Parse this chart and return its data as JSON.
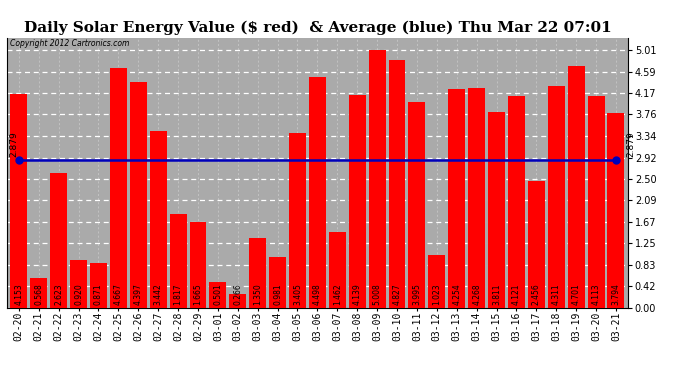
{
  "title": "Daily Solar Energy Value ($ red)  & Average (blue) Thu Mar 22 07:01",
  "copyright": "Copyright 2012 Cartronics.com",
  "categories": [
    "02-20",
    "02-21",
    "02-22",
    "02-23",
    "02-24",
    "02-25",
    "02-26",
    "02-27",
    "02-28",
    "02-29",
    "03-01",
    "03-02",
    "03-03",
    "03-04",
    "03-05",
    "03-06",
    "03-07",
    "03-08",
    "03-09",
    "03-10",
    "03-11",
    "03-12",
    "03-13",
    "03-14",
    "03-15",
    "03-16",
    "03-17",
    "03-18",
    "03-19",
    "03-20",
    "03-21"
  ],
  "values": [
    4.153,
    0.568,
    2.623,
    0.92,
    0.871,
    4.667,
    4.397,
    3.442,
    1.817,
    1.665,
    0.501,
    0.266,
    1.35,
    0.981,
    3.405,
    4.498,
    1.462,
    4.139,
    5.008,
    4.827,
    3.995,
    1.023,
    4.254,
    4.268,
    3.811,
    4.121,
    2.456,
    4.311,
    4.701,
    4.113,
    3.794
  ],
  "average": 2.879,
  "bar_color": "#ff0000",
  "avg_line_color": "#0000bb",
  "avg_label": "2.879",
  "background_color": "#ffffff",
  "plot_bg_color": "#aaaaaa",
  "yticks_right": [
    0.0,
    0.42,
    0.83,
    1.25,
    1.67,
    2.09,
    2.5,
    2.92,
    3.34,
    3.76,
    4.17,
    4.59,
    5.01
  ],
  "ylim": [
    0,
    5.26
  ],
  "title_fontsize": 11,
  "tick_fontsize": 7,
  "bar_label_fontsize": 5.5,
  "avg_fontsize": 6.5
}
